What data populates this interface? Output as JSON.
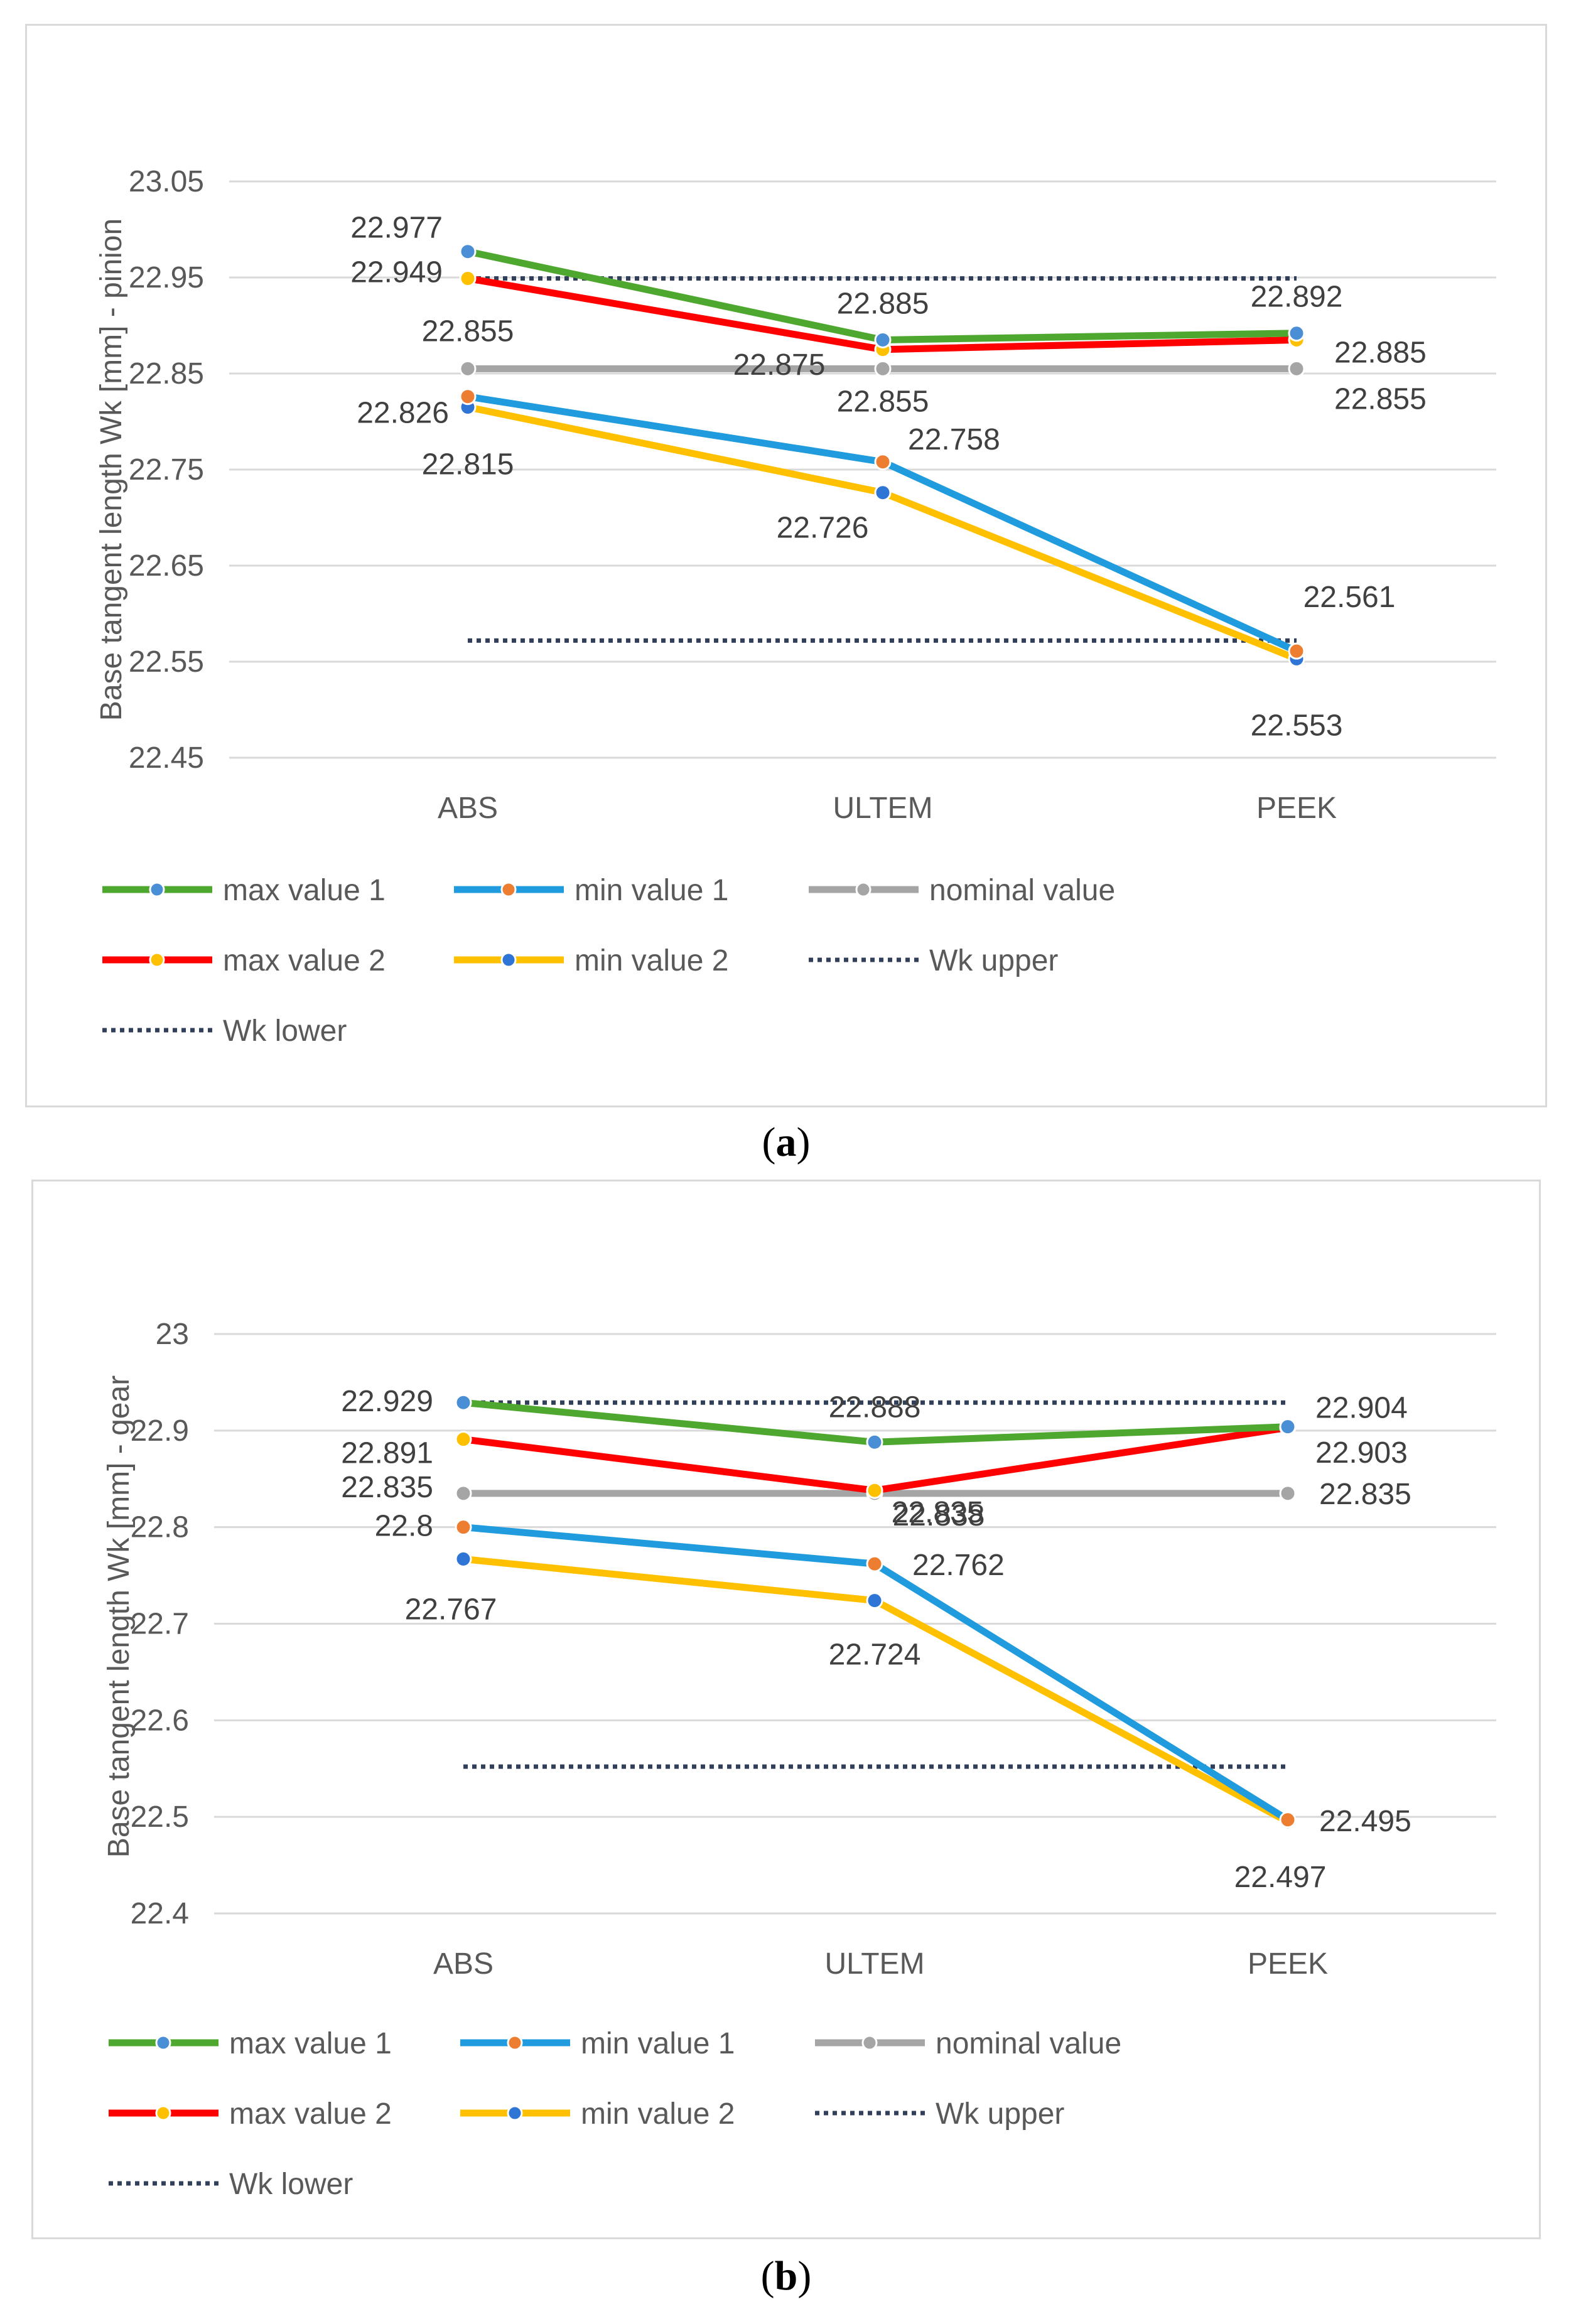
{
  "chart_data": [
    {
      "type": "line",
      "panel_label": "a",
      "ylabel": "Base tangent length Wk [mm] - pinion",
      "categories": [
        "ABS",
        "ULTEM",
        "PEEK"
      ],
      "yticks": [
        "23.05",
        "22.95",
        "22.85",
        "22.75",
        "22.65",
        "22.55",
        "22.45"
      ],
      "ylim": [
        22.45,
        23.05
      ],
      "grid": true,
      "legend_position": "bottom",
      "series": [
        {
          "name": "max value 1",
          "values": [
            22.977,
            22.885,
            22.892
          ],
          "color": "#4ea72e",
          "marker": "#4a8fd6",
          "style": "solid"
        },
        {
          "name": "min value 1",
          "values": [
            22.826,
            22.758,
            22.561
          ],
          "color": "#1f9bde",
          "marker": "#ed7d31",
          "style": "solid"
        },
        {
          "name": "nominal value",
          "values": [
            22.855,
            22.855,
            22.855
          ],
          "color": "#a5a5a5",
          "marker": "#a5a5a5",
          "style": "solid"
        },
        {
          "name": "max value 2",
          "values": [
            22.949,
            22.875,
            22.885
          ],
          "color": "#ff0000",
          "marker": "#ffc000",
          "style": "solid"
        },
        {
          "name": "min value 2",
          "values": [
            22.815,
            22.726,
            22.553
          ],
          "color": "#ffc000",
          "marker": "#2e75d6",
          "style": "solid"
        },
        {
          "name": "Wk upper",
          "values": [
            22.949,
            22.949,
            22.949
          ],
          "color": "#323f5a",
          "style": "dotted"
        },
        {
          "name": "Wk lower",
          "values": [
            22.572,
            22.572,
            22.572
          ],
          "color": "#323f5a",
          "style": "dotted"
        }
      ],
      "data_labels": [
        "22.977",
        "22.949",
        "22.855",
        "22.826",
        "22.815",
        "22.885",
        "22.875",
        "22.855",
        "22.758",
        "22.726",
        "22.892",
        "22.885",
        "22.855",
        "22.561",
        "22.553"
      ]
    },
    {
      "type": "line",
      "panel_label": "b",
      "ylabel": "Base tangent length Wk [mm] - gear",
      "categories": [
        "ABS",
        "ULTEM",
        "PEEK"
      ],
      "yticks": [
        "23",
        "22.9",
        "22.8",
        "22.7",
        "22.6",
        "22.5",
        "22.4"
      ],
      "ylim": [
        22.4,
        23.0
      ],
      "grid": true,
      "legend_position": "bottom",
      "series": [
        {
          "name": "max value 1",
          "values": [
            22.929,
            22.888,
            22.904
          ],
          "color": "#4ea72e",
          "marker": "#4a8fd6",
          "style": "solid"
        },
        {
          "name": "min value 1",
          "values": [
            22.8,
            22.762,
            22.497
          ],
          "color": "#1f9bde",
          "marker": "#ed7d31",
          "style": "solid"
        },
        {
          "name": "nominal value",
          "values": [
            22.835,
            22.835,
            22.835
          ],
          "color": "#a5a5a5",
          "marker": "#a5a5a5",
          "style": "solid"
        },
        {
          "name": "max value 2",
          "values": [
            22.891,
            22.838,
            22.903
          ],
          "color": "#ff0000",
          "marker": "#ffc000",
          "style": "solid"
        },
        {
          "name": "min value 2",
          "values": [
            22.767,
            22.724,
            22.495
          ],
          "color": "#ffc000",
          "marker": "#2e75d6",
          "style": "solid"
        },
        {
          "name": "Wk upper",
          "values": [
            22.929,
            22.929,
            22.929
          ],
          "color": "#323f5a",
          "style": "dotted"
        },
        {
          "name": "Wk lower",
          "values": [
            22.552,
            22.552,
            22.552
          ],
          "color": "#323f5a",
          "style": "dotted"
        }
      ],
      "data_labels": [
        "22.929",
        "22.891",
        "22.835",
        "22.8",
        "22.767",
        "22.888",
        "22.838",
        "22.835",
        "22.762",
        "22.724",
        "22.904",
        "22.903",
        "22.835",
        "22.495",
        "22.497"
      ]
    }
  ]
}
